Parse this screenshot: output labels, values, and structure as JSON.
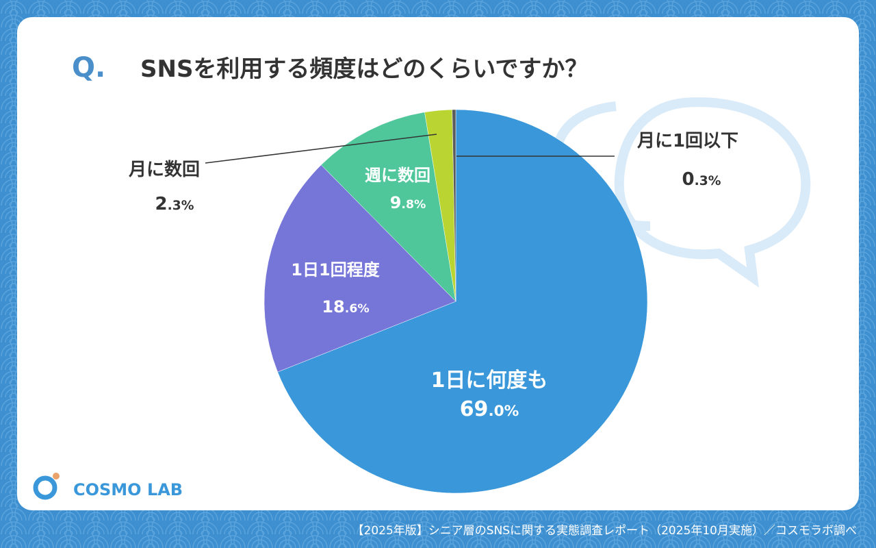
{
  "question_mark": "Q.",
  "logo": "COSMO LAB",
  "source": "【2025年版】シニア層のSNSに関する実態調査レポート（2025年10月実施）／コスモラボ調べ",
  "chart_data": {
    "type": "pie",
    "title": "SNSを利用する頻度はどのくらいですか？",
    "categories": [
      "1日に何度も",
      "1日1回程度",
      "週に数回",
      "月に数回",
      "月に1回以下"
    ],
    "values": [
      69.0,
      18.6,
      9.8,
      2.3,
      0.3
    ],
    "value_labels": [
      "69.0%",
      "18.6%",
      "9.8%",
      "2.3%",
      "0.3%"
    ],
    "colors": [
      "#3a98da",
      "#7675d8",
      "#4fc79b",
      "#bad432",
      "#5b5b5b"
    ]
  }
}
